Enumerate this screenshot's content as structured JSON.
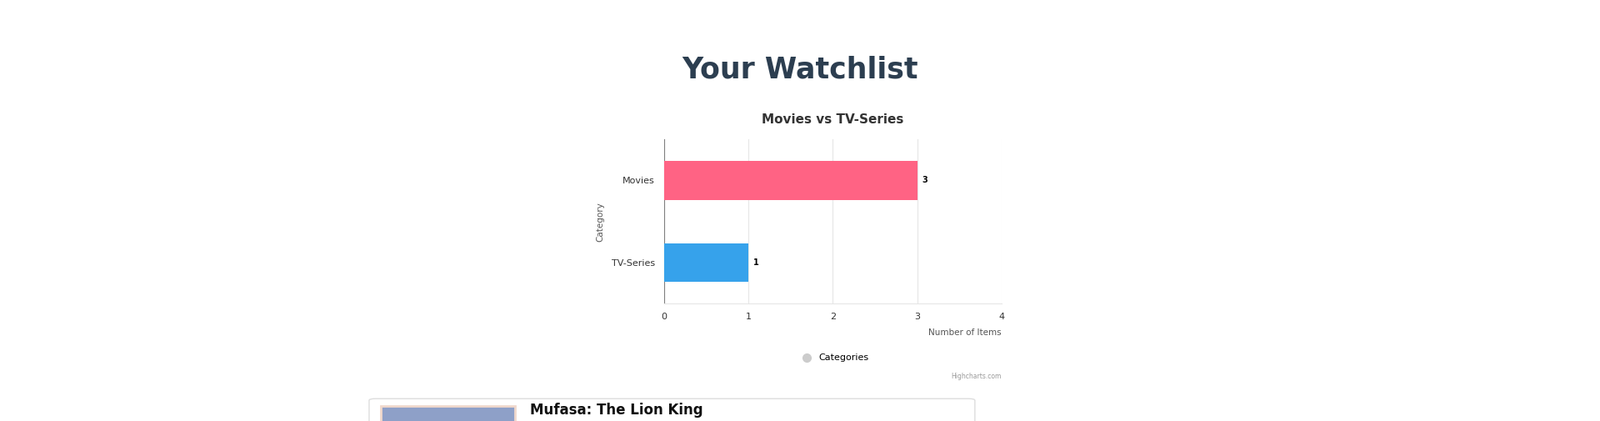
{
  "page": {
    "heading": "Your Watchlist",
    "card_title": "Mufasa: The Lion King",
    "credit": "Highcharts.com"
  },
  "chart_data": {
    "type": "bar",
    "orientation": "horizontal",
    "title": "Movies vs TV-Series",
    "categories": [
      "Movies",
      "TV-Series"
    ],
    "series": [
      {
        "name": "Categories",
        "values": [
          3,
          1
        ],
        "colors": [
          "#ff6384",
          "#36a2eb"
        ]
      }
    ],
    "x_label": "Number of Items",
    "y_label": "Category",
    "xlim": [
      0,
      4
    ],
    "xticks": [
      0,
      1,
      2,
      3,
      4
    ],
    "grid": true,
    "data_labels": true,
    "legend": "lower center"
  }
}
